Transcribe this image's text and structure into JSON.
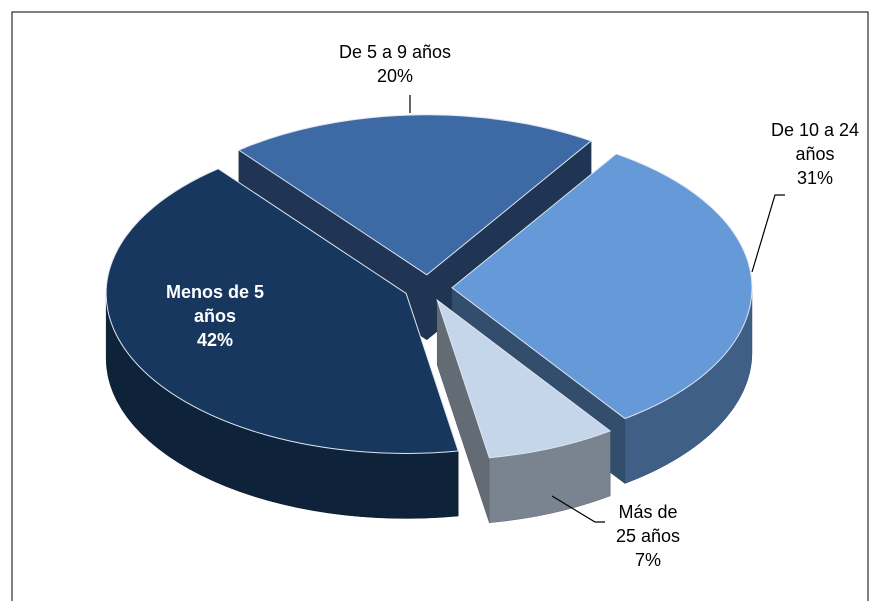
{
  "chart_data": {
    "type": "pie",
    "categories": [
      "Menos de 5 años",
      "De 5 a 9 años",
      "De 10 a 24 años",
      "Más de 25 años"
    ],
    "values": [
      42,
      20,
      31,
      7
    ],
    "value_labels": [
      "42%",
      "20%",
      "31%",
      "7%"
    ],
    "colors": [
      "#17375e",
      "#3d6aa5",
      "#6699d8",
      "#c5d5ea"
    ]
  }
}
